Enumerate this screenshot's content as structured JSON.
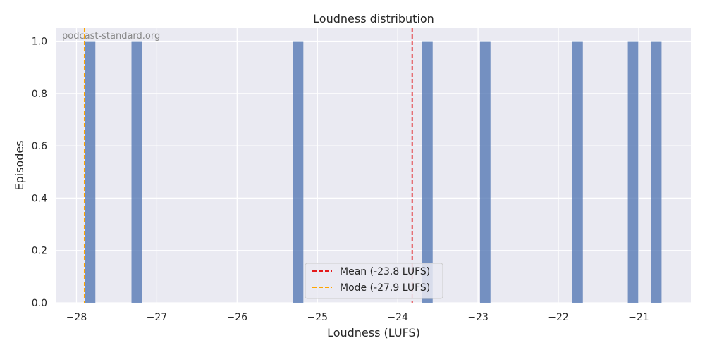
{
  "chart_data": {
    "type": "bar",
    "title": "Loudness distribution",
    "xlabel": "Loudness (LUFS)",
    "ylabel": "Episodes",
    "watermark": "podcast-standard.org",
    "xlim": [
      -28.25,
      -20.35
    ],
    "ylim": [
      0,
      1.05
    ],
    "xticks": [
      -28,
      -27,
      -26,
      -25,
      -24,
      -23,
      -22,
      -21
    ],
    "xtick_labels": [
      "−28",
      "−27",
      "−26",
      "−25",
      "−24",
      "−23",
      "−22",
      "−21"
    ],
    "yticks": [
      0.0,
      0.2,
      0.4,
      0.6,
      0.8,
      1.0
    ],
    "ytick_labels": [
      "0.0",
      "0.2",
      "0.4",
      "0.6",
      "0.8",
      "1.0"
    ],
    "bin_width": 0.13,
    "bars": [
      {
        "x": -27.83,
        "count": 1
      },
      {
        "x": -27.25,
        "count": 1
      },
      {
        "x": -25.24,
        "count": 1
      },
      {
        "x": -23.63,
        "count": 1
      },
      {
        "x": -22.91,
        "count": 1
      },
      {
        "x": -21.76,
        "count": 1
      },
      {
        "x": -21.07,
        "count": 1
      },
      {
        "x": -20.78,
        "count": 1
      }
    ],
    "reference_lines": [
      {
        "name": "Mean (-23.8 LUFS)",
        "x": -23.82,
        "color": "#e41a1c",
        "style": "dashed"
      },
      {
        "name": "Mode (-27.9 LUFS)",
        "x": -27.9,
        "color": "#ffa500",
        "style": "dashed"
      }
    ],
    "bar_color": "#4c72b0",
    "background_color": "#eaeaf2",
    "grid": true,
    "legend_position": "bottom-center"
  }
}
